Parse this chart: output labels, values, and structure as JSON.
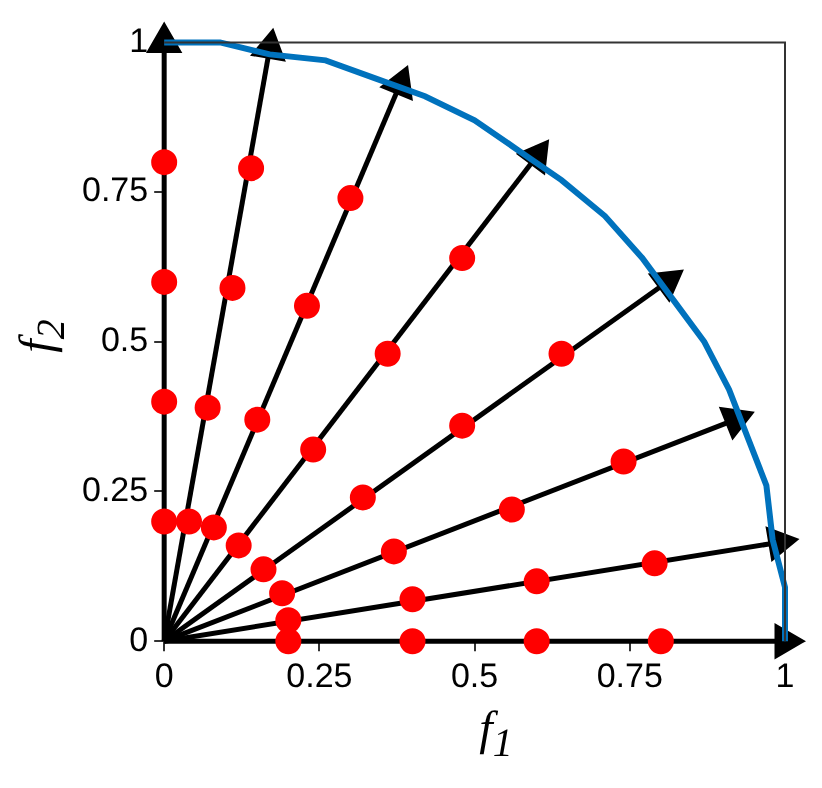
{
  "chart_data": {
    "type": "scatter",
    "xlabel": "f$_{1}$",
    "ylabel": "f$_{2}$",
    "xlim": [
      0,
      1
    ],
    "ylim": [
      0,
      1
    ],
    "xticks": [
      0,
      0.25,
      0.5,
      0.75,
      1
    ],
    "yticks": [
      0,
      0.25,
      0.5,
      0.75,
      1
    ],
    "grid": false,
    "series": [
      {
        "type": "line",
        "color": "#0072bd",
        "marker": "none",
        "x": [
          0,
          0.09,
          0.17,
          0.26,
          0.34,
          0.42,
          0.5,
          0.57,
          0.64,
          0.71,
          0.77,
          0.82,
          0.87,
          0.91,
          0.94,
          0.97,
          0.98,
          1,
          1
        ],
        "values": [
          1,
          1,
          0.98,
          0.97,
          0.94,
          0.91,
          0.87,
          0.82,
          0.77,
          0.71,
          0.64,
          0.57,
          0.5,
          0.42,
          0.34,
          0.26,
          0.17,
          0.09,
          0
        ]
      },
      {
        "type": "line",
        "color": "#000000",
        "marker": "triangle",
        "x": [
          0,
          1
        ],
        "values": [
          0,
          0
        ]
      },
      {
        "type": "line",
        "color": "#000000",
        "marker": "triangle",
        "x": [
          0,
          0.99
        ],
        "values": [
          0,
          0.165
        ]
      },
      {
        "type": "line",
        "color": "#000000",
        "marker": "triangle",
        "x": [
          0,
          0.92
        ],
        "values": [
          0,
          0.37
        ]
      },
      {
        "type": "line",
        "color": "#000000",
        "marker": "triangle",
        "x": [
          0,
          0.81
        ],
        "values": [
          0,
          0.6
        ]
      },
      {
        "type": "line",
        "color": "#000000",
        "marker": "triangle",
        "x": [
          0,
          0.6
        ],
        "values": [
          0,
          0.81
        ]
      },
      {
        "type": "line",
        "color": "#000000",
        "marker": "triangle",
        "x": [
          0,
          0.38
        ],
        "values": [
          0,
          0.93
        ]
      },
      {
        "type": "line",
        "color": "#000000",
        "marker": "triangle",
        "x": [
          0,
          0.17
        ],
        "values": [
          0,
          0.99
        ]
      },
      {
        "type": "line",
        "color": "#000000",
        "marker": "triangle",
        "x": [
          0,
          0
        ],
        "values": [
          0,
          1
        ]
      },
      {
        "color": "#ff0000",
        "marker": "circle",
        "x": [
          0,
          0.04,
          0.08,
          0.12,
          0.16,
          0.19,
          0.2,
          0.2,
          0,
          0.07,
          0.15,
          0.24,
          0.32,
          0.37,
          0.4,
          0.4,
          0,
          0.11,
          0.23,
          0.36,
          0.48,
          0.56,
          0.6,
          0.6,
          0,
          0.14,
          0.3,
          0.48,
          0.64,
          0.74,
          0.79,
          0.8
        ],
        "values": [
          0.2,
          0.2,
          0.19,
          0.16,
          0.12,
          0.08,
          0.035,
          0,
          0.4,
          0.39,
          0.37,
          0.32,
          0.24,
          0.15,
          0.07,
          0,
          0.6,
          0.59,
          0.56,
          0.48,
          0.36,
          0.22,
          0.1,
          0,
          0.8,
          0.79,
          0.74,
          0.64,
          0.48,
          0.3,
          0.13,
          0
        ]
      }
    ]
  }
}
